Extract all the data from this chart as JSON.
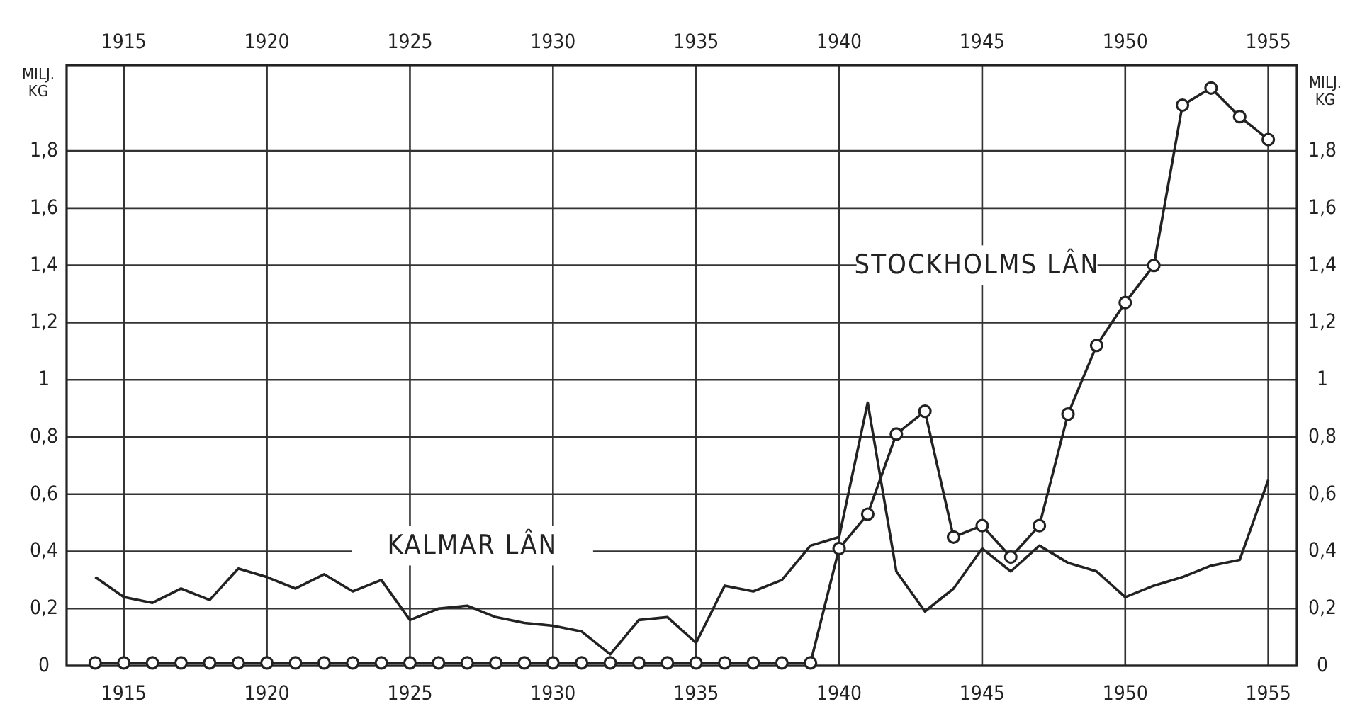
{
  "chart_data": {
    "type": "line",
    "ylabel": "MILJ. KG",
    "y2label": "MILJ. KG",
    "x": [
      1914,
      1915,
      1916,
      1917,
      1918,
      1919,
      1920,
      1921,
      1922,
      1923,
      1924,
      1925,
      1926,
      1927,
      1928,
      1929,
      1930,
      1931,
      1932,
      1933,
      1934,
      1935,
      1936,
      1937,
      1938,
      1939,
      1940,
      1941,
      1942,
      1943,
      1944,
      1945,
      1946,
      1947,
      1948,
      1949,
      1950,
      1951,
      1952,
      1953,
      1954,
      1955
    ],
    "series": [
      {
        "name": "KALMAR LÂN",
        "color": "#222222",
        "marker": "none",
        "values": [
          0.31,
          0.24,
          0.22,
          0.27,
          0.23,
          0.34,
          0.31,
          0.27,
          0.32,
          0.26,
          0.3,
          0.16,
          0.2,
          0.21,
          0.17,
          0.15,
          0.14,
          0.12,
          0.04,
          0.16,
          0.17,
          0.08,
          0.28,
          0.26,
          0.3,
          0.42,
          0.45,
          0.92,
          0.33,
          0.19,
          0.27,
          0.41,
          0.33,
          0.42,
          0.36,
          0.33,
          0.24,
          0.28,
          0.31,
          0.35,
          0.37,
          0.65
        ]
      },
      {
        "name": "STOCKHOLMS LÂN",
        "color": "#222222",
        "marker": "circle",
        "values": [
          0.01,
          0.01,
          0.01,
          0.01,
          0.01,
          0.01,
          0.01,
          0.01,
          0.01,
          0.01,
          0.01,
          0.01,
          0.01,
          0.01,
          0.01,
          0.01,
          0.01,
          0.01,
          0.01,
          0.01,
          0.01,
          0.01,
          0.01,
          0.01,
          0.01,
          0.01,
          0.41,
          0.53,
          0.81,
          0.89,
          0.45,
          0.49,
          0.38,
          0.49,
          0.88,
          1.12,
          1.27,
          1.4,
          1.96,
          2.02,
          1.92,
          1.84
        ]
      }
    ],
    "xlim": [
      1913,
      1956
    ],
    "xticks": [
      1915,
      1920,
      1925,
      1930,
      1935,
      1940,
      1945,
      1950,
      1955
    ],
    "x2lim": [
      1913,
      1956
    ],
    "x2ticks": [
      1915,
      1920,
      1925,
      1930,
      1935,
      1940,
      1945,
      1950,
      1955
    ],
    "ylim": [
      0,
      2.1
    ],
    "yticks": [
      0,
      {
        "value": 0.2,
        "label": "0,2"
      },
      {
        "value": 0.4,
        "label": "0,4"
      },
      {
        "value": 0.6,
        "label": "0,6"
      },
      {
        "value": 0.8,
        "label": "0,8"
      },
      1,
      {
        "value": 1.2,
        "label": "1,2"
      },
      {
        "value": 1.4,
        "label": "1,4"
      },
      {
        "value": 1.6,
        "label": "1,6"
      },
      {
        "value": 1.8,
        "label": "1,8"
      }
    ],
    "y2lim": [
      0,
      2.1
    ],
    "y2ticks": [
      0,
      {
        "value": 0.2,
        "label": "0,2"
      },
      {
        "value": 0.4,
        "label": "0,4"
      },
      {
        "value": 0.6,
        "label": "0,6"
      },
      {
        "value": 0.8,
        "label": "0,8"
      },
      1,
      {
        "value": 1.2,
        "label": "1,2"
      },
      {
        "value": 1.4,
        "label": "1,4"
      },
      {
        "value": 1.6,
        "label": "1,6"
      },
      {
        "value": 1.8,
        "label": "1,8"
      }
    ],
    "grid": true,
    "line_style": "solid"
  }
}
